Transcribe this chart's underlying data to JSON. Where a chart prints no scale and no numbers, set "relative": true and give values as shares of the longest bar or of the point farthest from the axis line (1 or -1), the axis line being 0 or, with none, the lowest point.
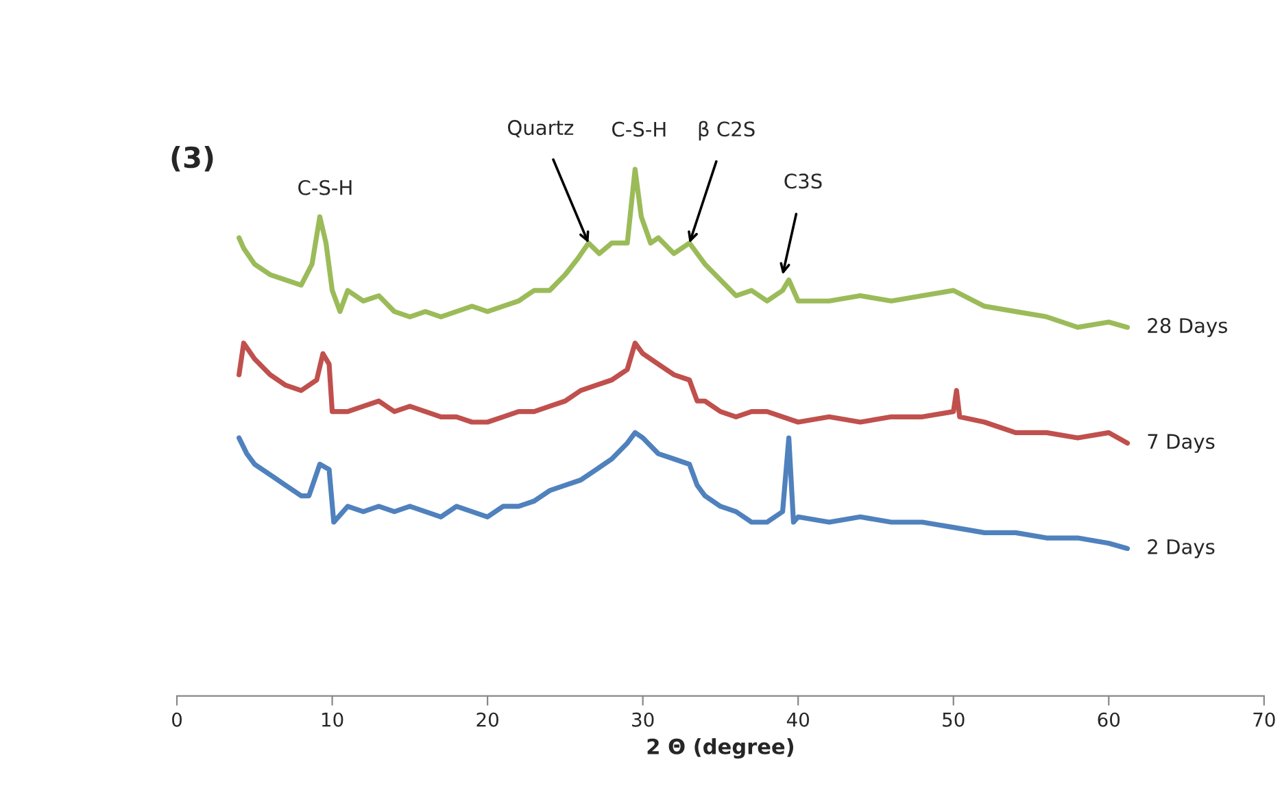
{
  "chart_data": {
    "type": "line",
    "relative": true,
    "xlabel": "2 Θ (degree)",
    "xlim": [
      0,
      70
    ],
    "xticks": [
      0,
      10,
      20,
      30,
      40,
      50,
      60,
      70
    ],
    "grid": false,
    "legend": false,
    "annotations": [
      "(3)",
      {
        "text": "C-S-H",
        "x": 9.2,
        "y": 0.91
      },
      {
        "text": "Quartz",
        "x": 26.5,
        "y": 0.86
      },
      {
        "text": "C-S-H",
        "x": 29.5,
        "y": 1.0
      },
      {
        "text": "β C2S",
        "x": 33,
        "y": 0.86
      },
      {
        "text": "C3S",
        "x": 39.0,
        "y": 0.8
      }
    ],
    "series": [
      {
        "name": "28 Days",
        "color": "#9bbb59",
        "x": [
          4.0,
          4.3,
          5,
          6,
          7,
          8,
          8.7,
          9.2,
          9.6,
          10.0,
          10.5,
          11,
          12,
          13,
          14,
          15,
          16,
          17,
          18,
          19,
          20,
          21,
          22,
          23,
          24,
          25,
          25.8,
          26.5,
          27.2,
          28,
          29,
          29.5,
          29.9,
          30.5,
          31,
          32,
          33,
          34,
          35,
          36,
          37,
          38,
          39,
          39.4,
          40,
          42,
          44,
          46,
          48,
          50,
          52,
          54,
          56,
          58,
          60,
          61.2
        ],
        "values": [
          0.87,
          0.85,
          0.82,
          0.8,
          0.79,
          0.78,
          0.82,
          0.91,
          0.86,
          0.77,
          0.73,
          0.77,
          0.75,
          0.76,
          0.73,
          0.72,
          0.73,
          0.72,
          0.73,
          0.74,
          0.73,
          0.74,
          0.75,
          0.77,
          0.77,
          0.8,
          0.83,
          0.86,
          0.84,
          0.86,
          0.86,
          1.0,
          0.91,
          0.86,
          0.87,
          0.84,
          0.86,
          0.82,
          0.79,
          0.76,
          0.77,
          0.75,
          0.77,
          0.79,
          0.75,
          0.75,
          0.76,
          0.75,
          0.76,
          0.77,
          0.74,
          0.73,
          0.72,
          0.7,
          0.71,
          0.7
        ]
      },
      {
        "name": "7 Days",
        "color": "#c0504d",
        "x": [
          4.0,
          4.3,
          5,
          6,
          7,
          8,
          9,
          9.4,
          9.8,
          10.0,
          11,
          12,
          13,
          14,
          15,
          16,
          17,
          18,
          19,
          20,
          21,
          22,
          23,
          24,
          25,
          26,
          27,
          28,
          29,
          29.5,
          30,
          31,
          32,
          33,
          33.5,
          34,
          35,
          36,
          37,
          38,
          40,
          42,
          44,
          46,
          48,
          50,
          50.2,
          50.4,
          52,
          54,
          56,
          58,
          60,
          61.2
        ],
        "values": [
          0.61,
          0.67,
          0.64,
          0.61,
          0.59,
          0.58,
          0.6,
          0.65,
          0.63,
          0.54,
          0.54,
          0.55,
          0.56,
          0.54,
          0.55,
          0.54,
          0.53,
          0.53,
          0.52,
          0.52,
          0.53,
          0.54,
          0.54,
          0.55,
          0.56,
          0.58,
          0.59,
          0.6,
          0.62,
          0.67,
          0.65,
          0.63,
          0.61,
          0.6,
          0.56,
          0.56,
          0.54,
          0.53,
          0.54,
          0.54,
          0.52,
          0.53,
          0.52,
          0.53,
          0.53,
          0.54,
          0.58,
          0.53,
          0.52,
          0.5,
          0.5,
          0.49,
          0.5,
          0.48
        ]
      },
      {
        "name": "2 Days",
        "color": "#4f81bd",
        "x": [
          4.0,
          4.5,
          5,
          6,
          7,
          8,
          8.5,
          9.2,
          9.8,
          10.1,
          11,
          12,
          13,
          14,
          15,
          16,
          17,
          18,
          19,
          20,
          21,
          22,
          23,
          24,
          25,
          26,
          27,
          28,
          29,
          29.5,
          30,
          31,
          32,
          33,
          33.5,
          34,
          35,
          36,
          37,
          38,
          39.0,
          39.4,
          39.7,
          40,
          42,
          44,
          46,
          48,
          50,
          52,
          54,
          56,
          58,
          60,
          61.2
        ],
        "values": [
          0.49,
          0.46,
          0.44,
          0.42,
          0.4,
          0.38,
          0.38,
          0.44,
          0.43,
          0.33,
          0.36,
          0.35,
          0.36,
          0.35,
          0.36,
          0.35,
          0.34,
          0.36,
          0.35,
          0.34,
          0.36,
          0.36,
          0.37,
          0.39,
          0.4,
          0.41,
          0.43,
          0.45,
          0.48,
          0.5,
          0.49,
          0.46,
          0.45,
          0.44,
          0.4,
          0.38,
          0.36,
          0.35,
          0.33,
          0.33,
          0.35,
          0.49,
          0.33,
          0.34,
          0.33,
          0.34,
          0.33,
          0.33,
          0.32,
          0.31,
          0.31,
          0.3,
          0.3,
          0.29,
          0.28
        ]
      }
    ]
  }
}
